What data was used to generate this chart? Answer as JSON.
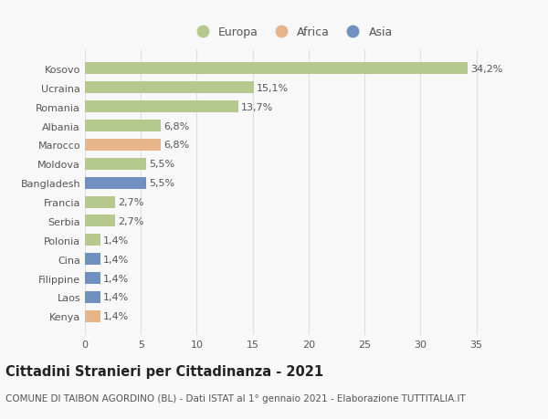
{
  "countries": [
    "Kosovo",
    "Ucraina",
    "Romania",
    "Albania",
    "Marocco",
    "Moldova",
    "Bangladesh",
    "Francia",
    "Serbia",
    "Polonia",
    "Cina",
    "Filippine",
    "Laos",
    "Kenya"
  ],
  "values": [
    34.2,
    15.1,
    13.7,
    6.8,
    6.8,
    5.5,
    5.5,
    2.7,
    2.7,
    1.4,
    1.4,
    1.4,
    1.4,
    1.4
  ],
  "labels": [
    "34,2%",
    "15,1%",
    "13,7%",
    "6,8%",
    "6,8%",
    "5,5%",
    "5,5%",
    "2,7%",
    "2,7%",
    "1,4%",
    "1,4%",
    "1,4%",
    "1,4%",
    "1,4%"
  ],
  "continents": [
    "Europa",
    "Europa",
    "Europa",
    "Europa",
    "Africa",
    "Europa",
    "Asia",
    "Europa",
    "Europa",
    "Europa",
    "Asia",
    "Asia",
    "Asia",
    "Africa"
  ],
  "colors": {
    "Europa": "#b5c98e",
    "Africa": "#e8b48a",
    "Asia": "#7090c0"
  },
  "xlim": [
    0,
    37
  ],
  "xticks": [
    0,
    5,
    10,
    15,
    20,
    25,
    30,
    35
  ],
  "title": "Cittadini Stranieri per Cittadinanza - 2021",
  "subtitle": "COMUNE DI TAIBON AGORDINO (BL) - Dati ISTAT al 1° gennaio 2021 - Elaborazione TUTTITALIA.IT",
  "background_color": "#f8f8f8",
  "grid_color": "#e0e0e0",
  "label_fontsize": 8.0,
  "bar_label_fontsize": 8.0,
  "title_fontsize": 10.5,
  "subtitle_fontsize": 7.5
}
